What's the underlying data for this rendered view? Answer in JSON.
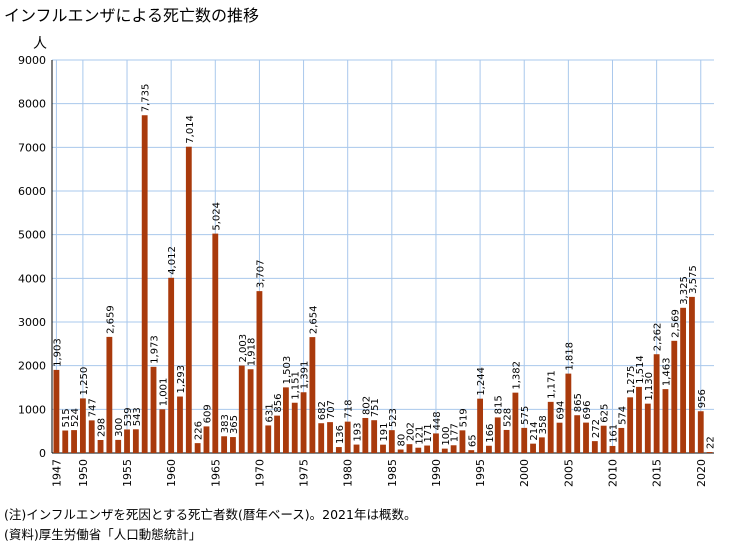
{
  "chart_data": {
    "type": "bar",
    "title": "インフルエンザによる死亡数の推移",
    "ylabel": "人",
    "xlabel": "",
    "ylim": [
      0,
      9000
    ],
    "y_ticks": [
      0,
      1000,
      2000,
      3000,
      4000,
      5000,
      6000,
      7000,
      8000,
      9000
    ],
    "x_tick_years": [
      1947,
      1950,
      1955,
      1960,
      1965,
      1970,
      1975,
      1980,
      1985,
      1990,
      1995,
      2000,
      2005,
      2010,
      2015,
      2020
    ],
    "grid": true,
    "bar_color": "#a93a0c",
    "grid_color": "#a9c8ec",
    "years": [
      1947,
      1948,
      1949,
      1950,
      1951,
      1952,
      1953,
      1954,
      1955,
      1956,
      1957,
      1958,
      1959,
      1960,
      1961,
      1962,
      1963,
      1964,
      1965,
      1966,
      1967,
      1968,
      1969,
      1970,
      1971,
      1972,
      1973,
      1974,
      1975,
      1976,
      1977,
      1978,
      1979,
      1980,
      1981,
      1982,
      1983,
      1984,
      1985,
      1986,
      1987,
      1988,
      1989,
      1990,
      1991,
      1992,
      1993,
      1994,
      1995,
      1996,
      1997,
      1998,
      1999,
      2000,
      2001,
      2002,
      2003,
      2004,
      2005,
      2006,
      2007,
      2008,
      2009,
      2010,
      2011,
      2012,
      2013,
      2014,
      2015,
      2016,
      2017,
      2018,
      2019,
      2020,
      2021
    ],
    "values": [
      1903,
      515,
      524,
      1250,
      747,
      298,
      2659,
      300,
      539,
      543,
      7735,
      1973,
      1001,
      4012,
      1293,
      7014,
      226,
      609,
      5024,
      383,
      365,
      2003,
      1918,
      3707,
      631,
      856,
      1503,
      1151,
      1391,
      2654,
      682,
      707,
      136,
      718,
      193,
      802,
      751,
      191,
      523,
      80,
      202,
      121,
      171,
      448,
      100,
      177,
      519,
      65,
      1244,
      166,
      815,
      528,
      1382,
      575,
      214,
      358,
      1171,
      694,
      1818,
      865,
      696,
      272,
      625,
      161,
      574,
      1275,
      1514,
      1130,
      2262,
      1463,
      2569,
      3325,
      3575,
      956,
      22
    ],
    "labels": [
      "1,903",
      "515",
      "524",
      "1,250",
      "747",
      "298",
      "2,659",
      "300",
      "539",
      "543",
      "7,735",
      "1,973",
      "1,001",
      "4,012",
      "1,293",
      "7,014",
      "226",
      "609",
      "5,024",
      "383",
      "365",
      "2,003",
      "1,918",
      "3,707",
      "631",
      "856",
      "1,503",
      "1,151",
      "1,391",
      "2,654",
      "682",
      "707",
      "136",
      "718",
      "193",
      "802",
      "751",
      "191",
      "523",
      "80",
      "202",
      "121",
      "171",
      "448",
      "100",
      "177",
      "519",
      "65",
      "1,244",
      "166",
      "815",
      "528",
      "1,382",
      "575",
      "214",
      "358",
      "1,171",
      "694",
      "1,818",
      "865",
      "696",
      "272",
      "625",
      "161",
      "574",
      "1,275",
      "1,514",
      "1,130",
      "2,262",
      "1,463",
      "2,569",
      "3,325",
      "3,575",
      "956",
      "22"
    ]
  },
  "notes": [
    "(注)インフルエンザを死因とする死亡者数(暦年ベース)。2021年は概数。",
    "(資料)厚生労働省「人口動態統計」"
  ]
}
